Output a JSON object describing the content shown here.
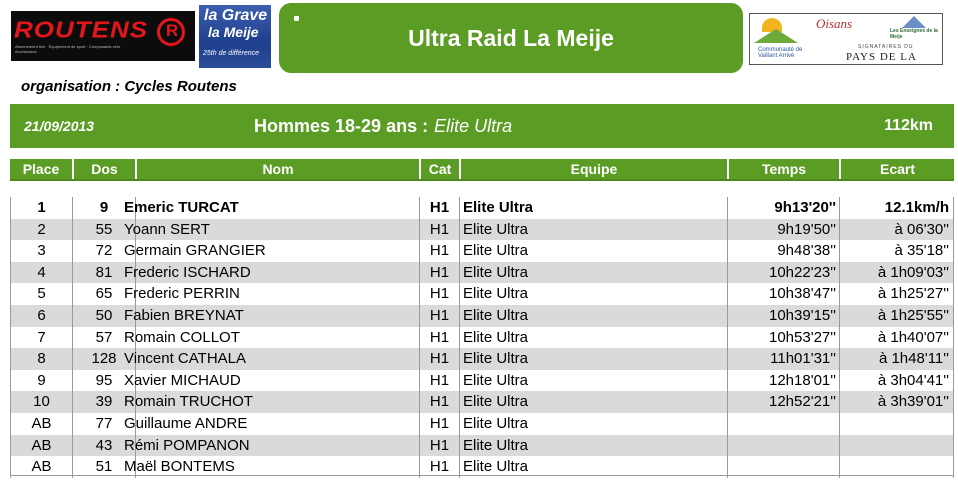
{
  "logos": {
    "routens": {
      "text": "ROUTENS",
      "tagline": "Abonnement fixé · Équipement de sport · Composants vélo · Accessoires"
    },
    "la_grave": {
      "line1": "la Grave",
      "line2": "la Meije",
      "line3": "25th de différence"
    },
    "sponsors": {
      "vaillans": "Communauté de Vaillant Arrivé",
      "oisans": "Oisans",
      "ensignes": "Les Enseignes de la Meije",
      "pays_small": "SIGNATAIRES DU",
      "pays": "PAYS DE LA MEIJE"
    }
  },
  "header": {
    "title": "Ultra Raid La Meije",
    "organisation": "organisation : Cycles Routens"
  },
  "race": {
    "date": "21/09/2013",
    "category": "Hommes 18-29 ans :",
    "category_type": "Elite Ultra",
    "distance": "112km"
  },
  "colors": {
    "accent": "#5b9c24",
    "row_alt": "#dadada"
  },
  "columns": [
    "Place",
    "Dos",
    "Nom",
    "Cat",
    "Equipe",
    "Temps",
    "Ecart"
  ],
  "rows": [
    {
      "place": "1",
      "dos": "9",
      "nom": "Emeric TURCAT",
      "cat": "H1",
      "equipe": "Elite Ultra",
      "temps": "9h13'20''",
      "ecart": "12.1km/h"
    },
    {
      "place": "2",
      "dos": "55",
      "nom": "Yoann SERT",
      "cat": "H1",
      "equipe": "Elite Ultra",
      "temps": "9h19'50''",
      "ecart": "à 06'30''"
    },
    {
      "place": "3",
      "dos": "72",
      "nom": "Germain GRANGIER",
      "cat": "H1",
      "equipe": "Elite Ultra",
      "temps": "9h48'38''",
      "ecart": "à 35'18''"
    },
    {
      "place": "4",
      "dos": "81",
      "nom": "Frederic ISCHARD",
      "cat": "H1",
      "equipe": "Elite Ultra",
      "temps": "10h22'23''",
      "ecart": "à 1h09'03''"
    },
    {
      "place": "5",
      "dos": "65",
      "nom": "Frederic PERRIN",
      "cat": "H1",
      "equipe": "Elite Ultra",
      "temps": "10h38'47''",
      "ecart": "à 1h25'27''"
    },
    {
      "place": "6",
      "dos": "50",
      "nom": "Fabien BREYNAT",
      "cat": "H1",
      "equipe": "Elite Ultra",
      "temps": "10h39'15''",
      "ecart": "à 1h25'55''"
    },
    {
      "place": "7",
      "dos": "57",
      "nom": "Romain COLLOT",
      "cat": "H1",
      "equipe": "Elite Ultra",
      "temps": "10h53'27''",
      "ecart": "à 1h40'07''"
    },
    {
      "place": "8",
      "dos": "128",
      "nom": "Vincent CATHALA",
      "cat": "H1",
      "equipe": "Elite Ultra",
      "temps": "11h01'31''",
      "ecart": "à 1h48'11''"
    },
    {
      "place": "9",
      "dos": "95",
      "nom": "Xavier MICHAUD",
      "cat": "H1",
      "equipe": "Elite Ultra",
      "temps": "12h18'01''",
      "ecart": "à 3h04'41''"
    },
    {
      "place": "10",
      "dos": "39",
      "nom": "Romain TRUCHOT",
      "cat": "H1",
      "equipe": "Elite Ultra",
      "temps": "12h52'21''",
      "ecart": "à 3h39'01''"
    },
    {
      "place": "AB",
      "dos": "77",
      "nom": "Guillaume ANDRE",
      "cat": "H1",
      "equipe": "Elite Ultra",
      "temps": "",
      "ecart": ""
    },
    {
      "place": "AB",
      "dos": "43",
      "nom": "Rémi POMPANON",
      "cat": "H1",
      "equipe": "Elite Ultra",
      "temps": "",
      "ecart": ""
    },
    {
      "place": "AB",
      "dos": "51",
      "nom": "Maël BONTEMS",
      "cat": "H1",
      "equipe": "Elite Ultra",
      "temps": "",
      "ecart": ""
    }
  ]
}
